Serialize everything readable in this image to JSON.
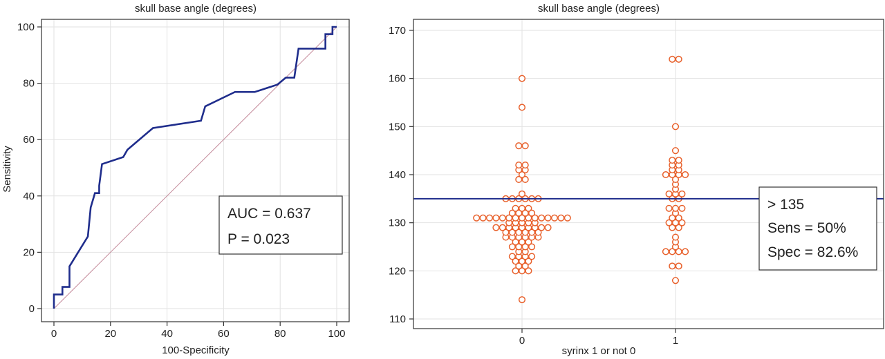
{
  "colors": {
    "roc_line": "#1f2d8c",
    "diagonal": "#c48a9a",
    "points": "#e8612c",
    "cutoff_line": "#1f2d8c",
    "grid": "#e2e2e2"
  },
  "chart_data": [
    {
      "type": "line",
      "title": "skull base angle (degrees)",
      "xlabel": "100-Specificity",
      "ylabel": "Sensitivity",
      "xlim": [
        0,
        100
      ],
      "ylim": [
        0,
        100
      ],
      "xticks": [
        "0",
        "20",
        "40",
        "60",
        "80",
        "100"
      ],
      "yticks": [
        "0",
        "20",
        "40",
        "60",
        "80",
        "100"
      ],
      "grid": true,
      "annotation": [
        "AUC = 0.637",
        "P = 0.023"
      ],
      "reference_line": [
        [
          0,
          0
        ],
        [
          100,
          100
        ]
      ],
      "series": [
        {
          "points": [
            [
              0,
              0
            ],
            [
              0,
              5
            ],
            [
              3,
              5
            ],
            [
              3,
              7.7
            ],
            [
              5.5,
              7.7
            ],
            [
              5.5,
              15
            ],
            [
              12,
              25.6
            ],
            [
              13,
              35.9
            ],
            [
              14.5,
              41
            ],
            [
              16,
              41
            ],
            [
              16,
              43.6
            ],
            [
              17,
              51.3
            ],
            [
              24.5,
              53.8
            ],
            [
              26,
              56.4
            ],
            [
              35,
              64.1
            ],
            [
              52,
              66.7
            ],
            [
              53.5,
              71.8
            ],
            [
              64,
              76.9
            ],
            [
              71,
              76.9
            ],
            [
              79,
              79.5
            ],
            [
              82,
              82
            ],
            [
              85,
              82
            ],
            [
              86.5,
              92.3
            ],
            [
              96,
              92.3
            ],
            [
              96,
              97.4
            ],
            [
              98.5,
              97.4
            ],
            [
              98.5,
              100
            ],
            [
              100,
              100
            ]
          ]
        }
      ]
    },
    {
      "type": "scatter",
      "title": "skull base angle (degrees)",
      "xlabel": "syrinx 1 or not 0",
      "ylabel": "",
      "categories": [
        "0",
        "1"
      ],
      "ylim": [
        110,
        170
      ],
      "yticks": [
        "110",
        "120",
        "130",
        "140",
        "150",
        "160",
        "170"
      ],
      "grid": true,
      "cutoff": 135,
      "annotation": [
        "> 135",
        "Sens = 50%",
        "Spec = 82.6%"
      ],
      "series": [
        {
          "x": "0",
          "values": [
            114,
            120,
            120,
            120,
            121,
            121,
            122,
            122,
            122,
            123,
            123,
            123,
            123,
            124,
            124,
            125,
            125,
            125,
            125,
            126,
            126,
            126,
            127,
            127,
            127,
            127,
            127,
            127,
            128,
            128,
            128,
            128,
            128,
            128,
            129,
            129,
            129,
            129,
            129,
            129,
            129,
            129,
            129,
            130,
            130,
            130,
            130,
            130,
            131,
            131,
            131,
            131,
            131,
            131,
            131,
            131,
            131,
            131,
            131,
            131,
            131,
            131,
            131,
            132,
            132,
            132,
            132,
            133,
            133,
            133,
            135,
            135,
            135,
            135,
            135,
            135,
            136,
            139,
            139,
            140,
            141,
            141,
            142,
            142,
            146,
            146,
            154,
            160
          ]
        },
        {
          "x": "1",
          "values": [
            118,
            121,
            121,
            124,
            124,
            124,
            124,
            125,
            126,
            127,
            129,
            129,
            130,
            130,
            130,
            131,
            131,
            132,
            133,
            133,
            133,
            135,
            135,
            136,
            136,
            136,
            137,
            138,
            139,
            140,
            140,
            140,
            140,
            141,
            141,
            142,
            142,
            143,
            143,
            145,
            150,
            164,
            164
          ]
        }
      ]
    }
  ]
}
